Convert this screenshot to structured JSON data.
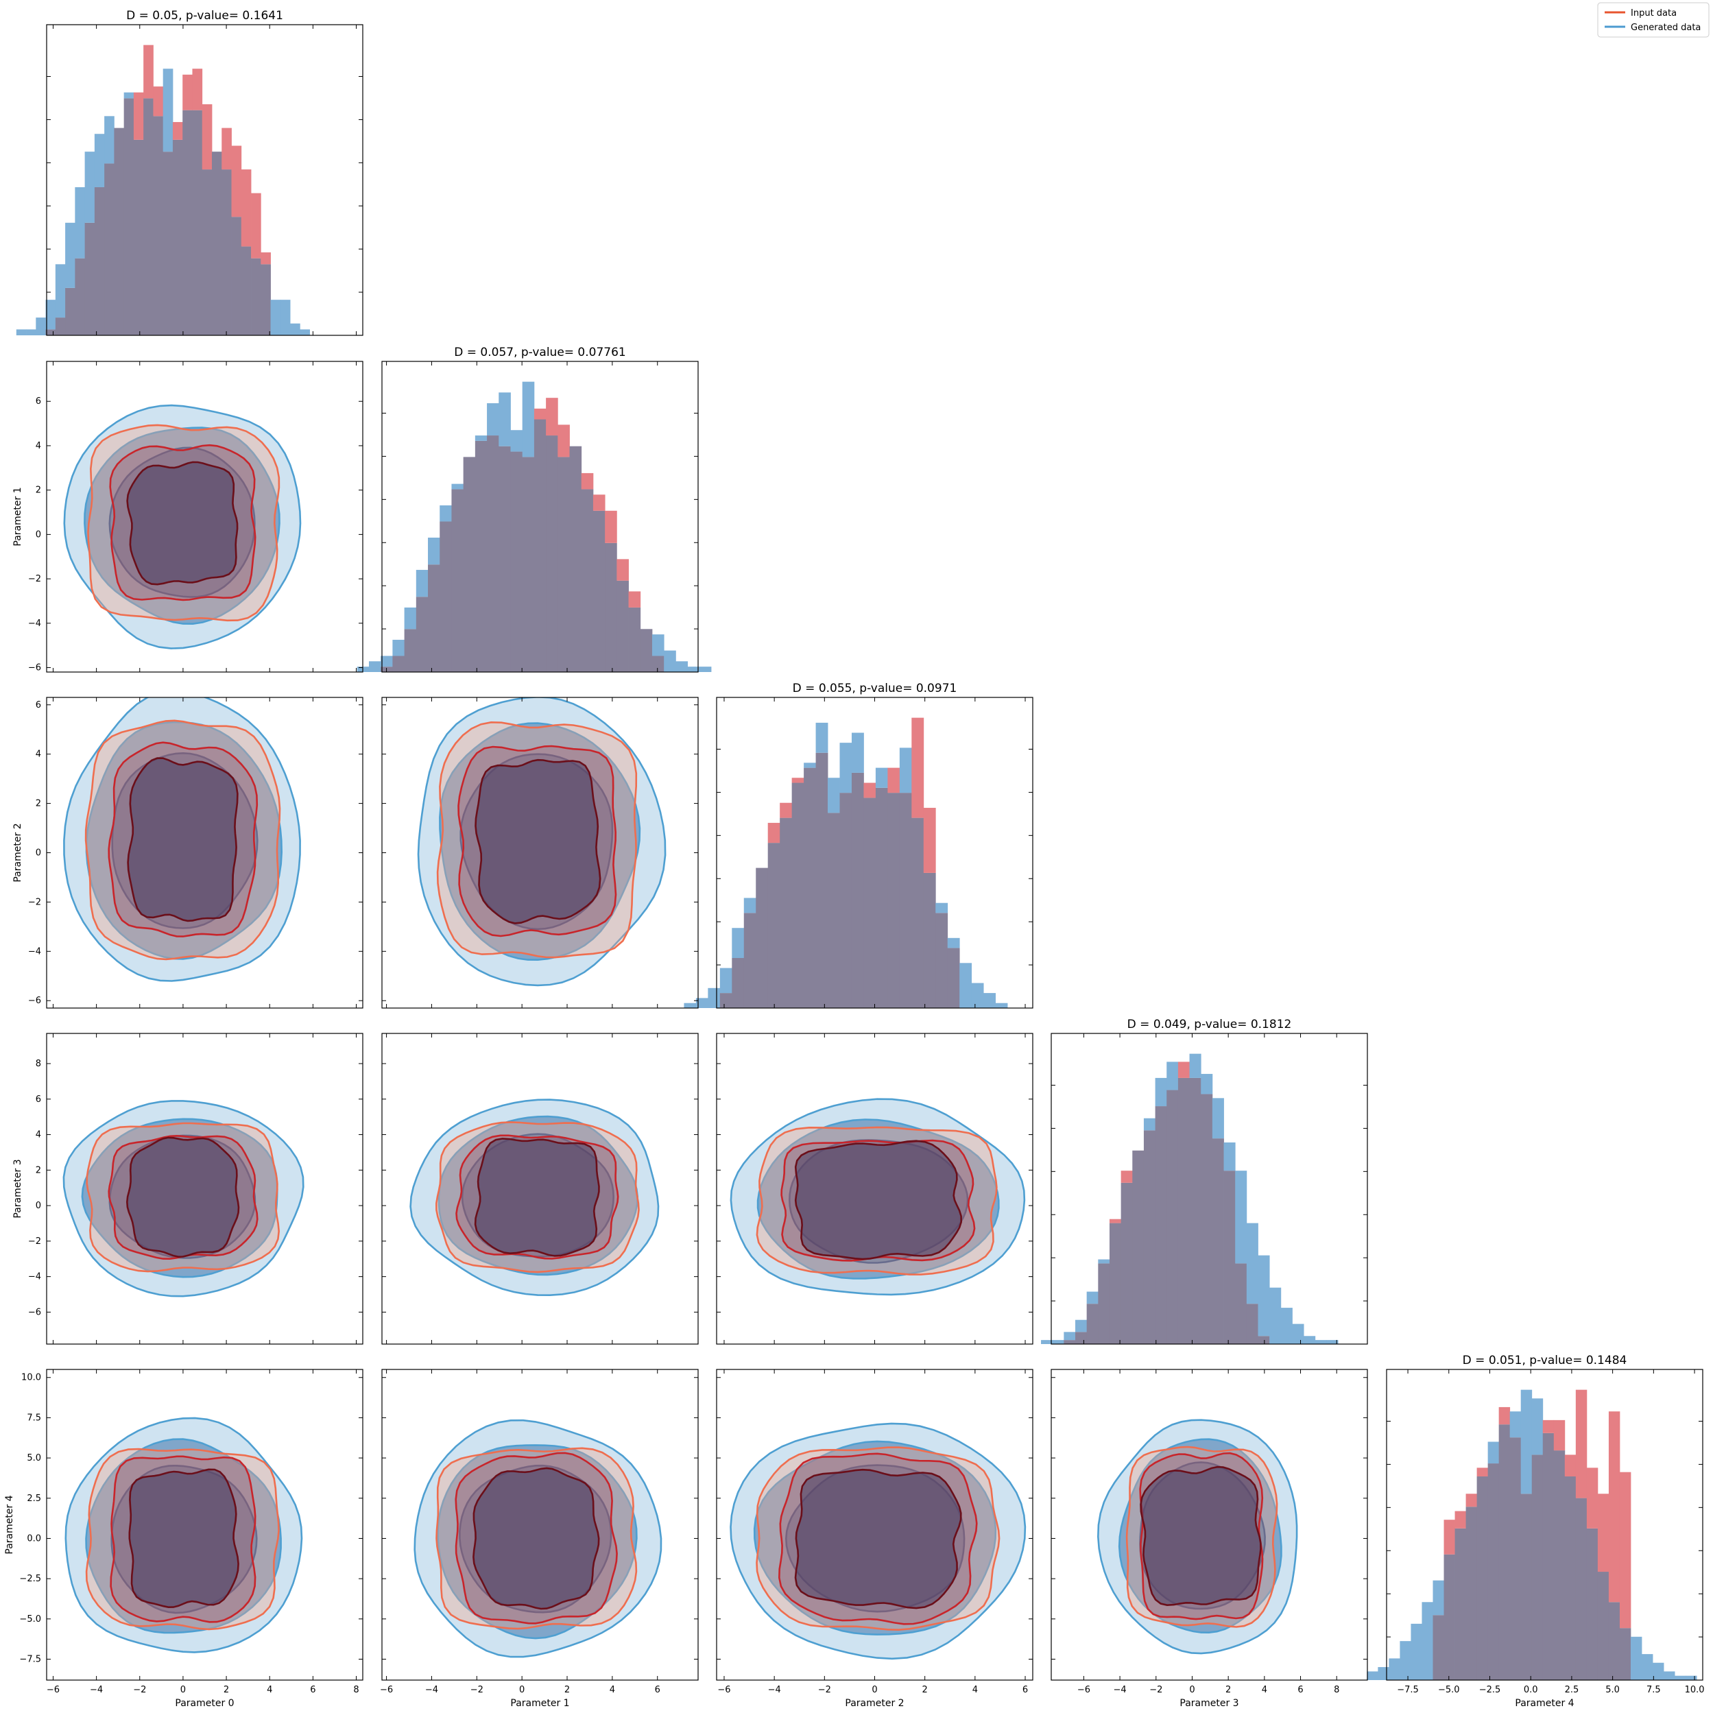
{
  "chart_data": {
    "type": "corner",
    "legend": {
      "placement": "top-right",
      "entries": [
        {
          "label": "Input data",
          "color": "#e8542f"
        },
        {
          "label": "Generated data",
          "color": "#4c9bd0"
        }
      ]
    },
    "colors": {
      "input_hist": "#e57f84",
      "generated_hist": "#7fb1d8",
      "overlap": "#868199",
      "gen_fill": "#1f5b9b",
      "gen_line_outer": "#4e9fd1",
      "gen_line_inner": "#1d4f91",
      "input_line_outer": "#ef6e4f",
      "input_line_mid": "#c8252b",
      "input_line_inner": "#6b0f1a",
      "core": "#4b3e62"
    },
    "parameters": [
      {
        "label": "Parameter 0",
        "range": [
          -6.3,
          8.3
        ],
        "ticks": [
          -6,
          -4,
          -2,
          0,
          2,
          4,
          6,
          8
        ],
        "tick_labels": [
          "−6",
          "−4",
          "−2",
          "0",
          "2",
          "4",
          "6",
          "8"
        ]
      },
      {
        "label": "Parameter 1",
        "range": [
          -6.2,
          7.8
        ],
        "ticks": [
          -6,
          -4,
          -2,
          0,
          2,
          4,
          6
        ],
        "tick_labels": [
          "−6",
          "−4",
          "−2",
          "0",
          "2",
          "4",
          "6"
        ]
      },
      {
        "label": "Parameter 2",
        "range": [
          -6.3,
          6.3
        ],
        "ticks": [
          -6,
          -4,
          -2,
          0,
          2,
          4,
          6
        ],
        "tick_labels": [
          "−6",
          "−4",
          "−2",
          "0",
          "2",
          "4",
          "6"
        ]
      },
      {
        "label": "Parameter 3",
        "range": [
          -7.8,
          9.7
        ],
        "ticks": [
          -6,
          -4,
          -2,
          0,
          2,
          4,
          6,
          8
        ],
        "tick_labels": [
          "−6",
          "−4",
          "−2",
          "0",
          "2",
          "4",
          "6",
          "8"
        ]
      },
      {
        "label": "Parameter 4",
        "range": [
          -8.8,
          10.5
        ],
        "ticks": [
          -7.5,
          -5.0,
          -2.5,
          0.0,
          2.5,
          5.0,
          7.5,
          10.0
        ],
        "tick_labels": [
          "−7.5",
          "−5.0",
          "−2.5",
          "0.0",
          "2.5",
          "5.0",
          "7.5",
          "10.0"
        ]
      }
    ],
    "diagonal": [
      {
        "title": "D = 0.05, p-value= 0.1641",
        "edges": [
          -5.5,
          4.5
        ],
        "input": [
          0,
          0,
          0,
          1,
          3,
          8,
          13,
          19,
          25,
          29,
          35,
          40,
          41,
          49,
          42,
          31,
          36,
          44,
          45,
          39,
          31,
          35,
          32,
          28,
          24,
          14,
          0,
          0,
          0,
          0,
          0
        ],
        "generated": [
          1,
          1,
          3,
          6,
          12,
          19,
          25,
          31,
          34,
          37,
          35,
          41,
          33,
          40,
          37,
          45,
          33,
          38,
          38,
          28,
          31,
          28,
          20,
          15,
          13,
          12,
          6,
          6,
          2,
          1,
          0
        ]
      },
      {
        "title": "D = 0.057, p-value= 0.07761",
        "edges": [
          -5.1,
          7.1
        ],
        "input": [
          0,
          0,
          1,
          3,
          8,
          14,
          20,
          28,
          34,
          40,
          43,
          44,
          42,
          41,
          40,
          49,
          51,
          46,
          42,
          37,
          33,
          30,
          21,
          15,
          8,
          3,
          0,
          0,
          0,
          0,
          0
        ],
        "generated": [
          1,
          2,
          3,
          6,
          12,
          19,
          25,
          31,
          35,
          40,
          44,
          50,
          52,
          45,
          54,
          47,
          44,
          40,
          42,
          34,
          30,
          24,
          17,
          12,
          8,
          7,
          4,
          2,
          1,
          1,
          0
        ]
      },
      {
        "title": "D = 0.055, p-value= 0.0971",
        "edges": [
          -5.4,
          5.4
        ],
        "input": [
          0,
          0,
          0,
          3,
          10,
          19,
          28,
          37,
          41,
          46,
          48,
          51,
          39,
          43,
          47,
          45,
          44,
          48,
          43,
          58,
          40,
          19,
          12,
          0,
          0,
          0,
          0,
          0,
          0,
          0,
          0
        ],
        "generated": [
          1,
          2,
          4,
          8,
          16,
          22,
          28,
          33,
          38,
          45,
          49,
          57,
          46,
          53,
          55,
          42,
          48,
          43,
          52,
          38,
          27,
          21,
          14,
          9,
          5,
          3,
          1,
          0,
          0,
          0,
          0
        ],
        "edges_generated": [
          -5.4,
          5.4
        ]
      },
      {
        "title": "D = 0.049, p-value= 0.1812",
        "edges": [
          -6.8,
          8.8
        ],
        "input": [
          0,
          0,
          0,
          1,
          3,
          10,
          20,
          31,
          43,
          48,
          53,
          59,
          63,
          70,
          66,
          62,
          51,
          43,
          20,
          10,
          2,
          0,
          0,
          0,
          0,
          0,
          0,
          0,
          0,
          0,
          0
        ],
        "generated": [
          0,
          1,
          1,
          3,
          6,
          13,
          21,
          30,
          40,
          48,
          56,
          66,
          70,
          66,
          72,
          67,
          61,
          50,
          43,
          30,
          22,
          14,
          9,
          5,
          2,
          1,
          1,
          0,
          0,
          0,
          0
        ]
      },
      {
        "title": "D = 0.051, p-value= 0.1484",
        "edges": [
          -7.8,
          9.0
        ],
        "input": [
          0,
          0,
          0,
          0,
          0,
          0,
          15,
          37,
          39,
          43,
          49,
          50,
          63,
          56,
          43,
          52,
          60,
          60,
          52,
          67,
          49,
          43,
          62,
          48,
          0,
          0,
          0,
          0,
          0,
          0,
          0
        ],
        "generated": [
          2,
          3,
          5,
          9,
          13,
          18,
          23,
          29,
          35,
          40,
          47,
          55,
          59,
          62,
          67,
          65,
          57,
          53,
          47,
          42,
          35,
          25,
          18,
          12,
          10,
          6,
          4,
          2,
          1,
          1,
          0
        ]
      }
    ],
    "sigma": {
      "0": {
        "input": [
          [
            -4.0,
            4.7
          ],
          [
            -3.0,
            3.6
          ],
          [
            -2.2,
            2.7
          ]
        ],
        "generated": [
          [
            -5.5,
            5.4
          ],
          [
            -4.6,
            4.4
          ],
          [
            -3.4,
            3.3
          ]
        ]
      },
      "1": {
        "input": [
          [
            -4.0,
            4.7
          ],
          [
            -3.2,
            3.7
          ],
          [
            -2.4,
            2.9
          ]
        ],
        "generated": [
          [
            -5.4,
            5.5
          ],
          [
            -4.4,
            4.4
          ],
          [
            -3.4,
            3.3
          ]
        ]
      },
      "2": {
        "input": [
          [
            -4.7,
            4.7
          ],
          [
            -3.8,
            3.8
          ],
          [
            -3.2,
            3.2
          ]
        ],
        "generated": [
          [
            -5.9,
            5.8
          ],
          [
            -4.8,
            4.8
          ],
          [
            -3.5,
            3.6
          ]
        ]
      },
      "3": {
        "input": [
          [
            -4.1,
            4.1
          ],
          [
            -3.2,
            3.5
          ],
          [
            -2.9,
            3.5
          ]
        ],
        "generated": [
          [
            -5.3,
            5.7
          ],
          [
            -4.4,
            4.5
          ],
          [
            -3.4,
            3.5
          ]
        ]
      },
      "4": {
        "input": [
          [
            -5.5,
            5.5
          ],
          [
            -5.0,
            5.2
          ],
          [
            -4.0,
            4.3
          ]
        ],
        "generated": [
          [
            -7.0,
            7.5
          ],
          [
            -6.0,
            6.0
          ],
          [
            -4.5,
            4.6
          ]
        ]
      }
    },
    "pair_offsets": {
      "1-0": [
        0.0,
        0.5
      ],
      "2-0": [
        0.0,
        0.5
      ],
      "2-1": [
        0.7,
        0.5
      ],
      "3-0": [
        0.0,
        0.5
      ],
      "3-1": [
        0.7,
        0.5
      ],
      "3-2": [
        0.1,
        0.3
      ],
      "4-0": [
        0.0,
        0.0
      ],
      "4-1": [
        0.6,
        0.0
      ],
      "4-2": [
        0.1,
        0.0
      ],
      "4-3": [
        0.5,
        0.1
      ]
    }
  }
}
